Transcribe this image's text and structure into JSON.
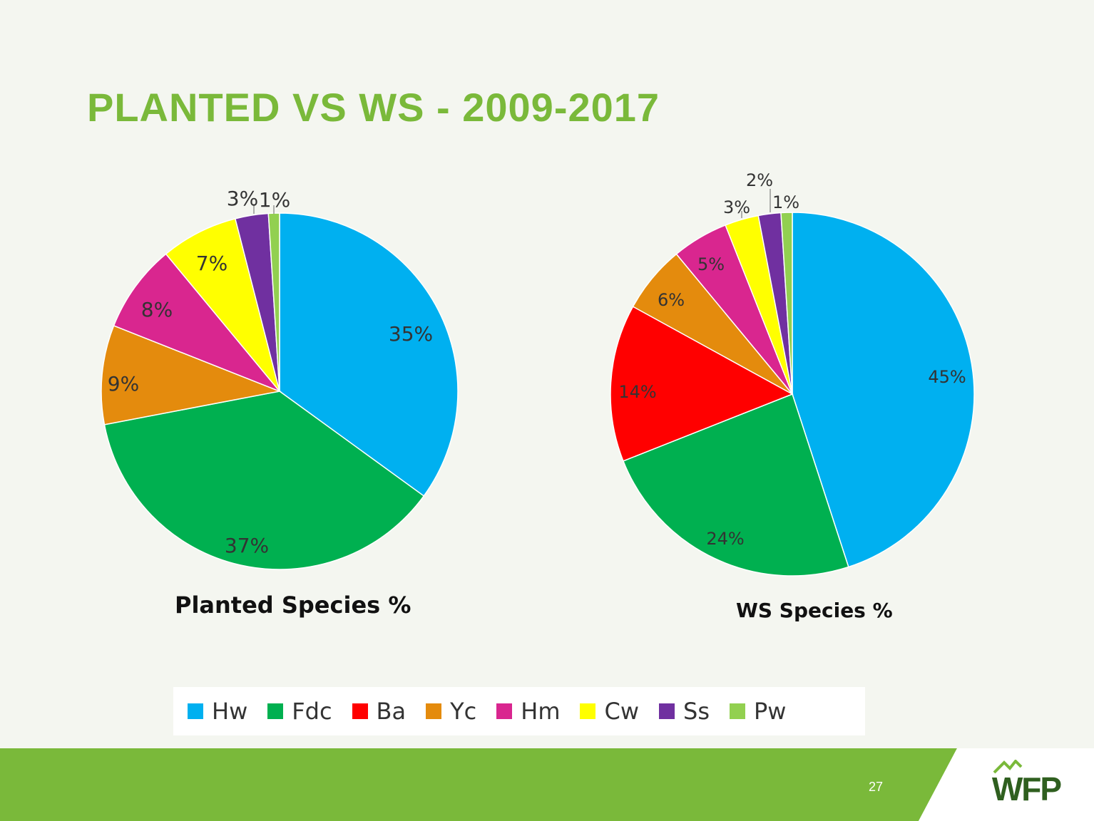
{
  "title": "PLANTED VS WS - 2009-2017",
  "colors": {
    "title": "#7ab93a",
    "footer_green": "#7ab93a",
    "footer_white": "#ffffff",
    "logo": "#2f5f1f"
  },
  "chart_data": [
    {
      "type": "pie",
      "title": "Planted Species %",
      "slices": [
        {
          "category": "Hw",
          "value": 35,
          "label": "35%",
          "color": "#00b0f0"
        },
        {
          "category": "Fdc",
          "value": 37,
          "label": "37%",
          "color": "#00b050"
        },
        {
          "category": "Yc",
          "value": 9,
          "label": "9%",
          "color": "#e48b0d"
        },
        {
          "category": "Hm",
          "value": 8,
          "label": "8%",
          "color": "#d9268f"
        },
        {
          "category": "Cw",
          "value": 7,
          "label": "7%",
          "color": "#ffff00"
        },
        {
          "category": "Ss",
          "value": 3,
          "label": "3%",
          "color": "#7030a0"
        },
        {
          "category": "Pw",
          "value": 1,
          "label": "1%",
          "color": "#92d050"
        }
      ]
    },
    {
      "type": "pie",
      "title": "WS Species %",
      "slices": [
        {
          "category": "Hw",
          "value": 45,
          "label": "45%",
          "color": "#00b0f0"
        },
        {
          "category": "Fdc",
          "value": 24,
          "label": "24%",
          "color": "#00b050"
        },
        {
          "category": "Ba",
          "value": 14,
          "label": "14%",
          "color": "#ff0000"
        },
        {
          "category": "Yc",
          "value": 6,
          "label": "6%",
          "color": "#e48b0d"
        },
        {
          "category": "Hm",
          "value": 5,
          "label": "5%",
          "color": "#d9268f"
        },
        {
          "category": "Cw",
          "value": 3,
          "label": "3%",
          "color": "#ffff00"
        },
        {
          "category": "Ss",
          "value": 2,
          "label": "2%",
          "color": "#7030a0"
        },
        {
          "category": "Pw",
          "value": 1,
          "label": "1%",
          "color": "#92d050"
        }
      ]
    }
  ],
  "legend": [
    {
      "label": "Hw",
      "color": "#00b0f0"
    },
    {
      "label": "Fdc",
      "color": "#00b050"
    },
    {
      "label": "Ba",
      "color": "#ff0000"
    },
    {
      "label": "Yc",
      "color": "#e48b0d"
    },
    {
      "label": "Hm",
      "color": "#d9268f"
    },
    {
      "label": "Cw",
      "color": "#ffff00"
    },
    {
      "label": "Ss",
      "color": "#7030a0"
    },
    {
      "label": "Pw",
      "color": "#92d050"
    }
  ],
  "footer": {
    "page_number": "27",
    "logo_text": "WFP"
  }
}
